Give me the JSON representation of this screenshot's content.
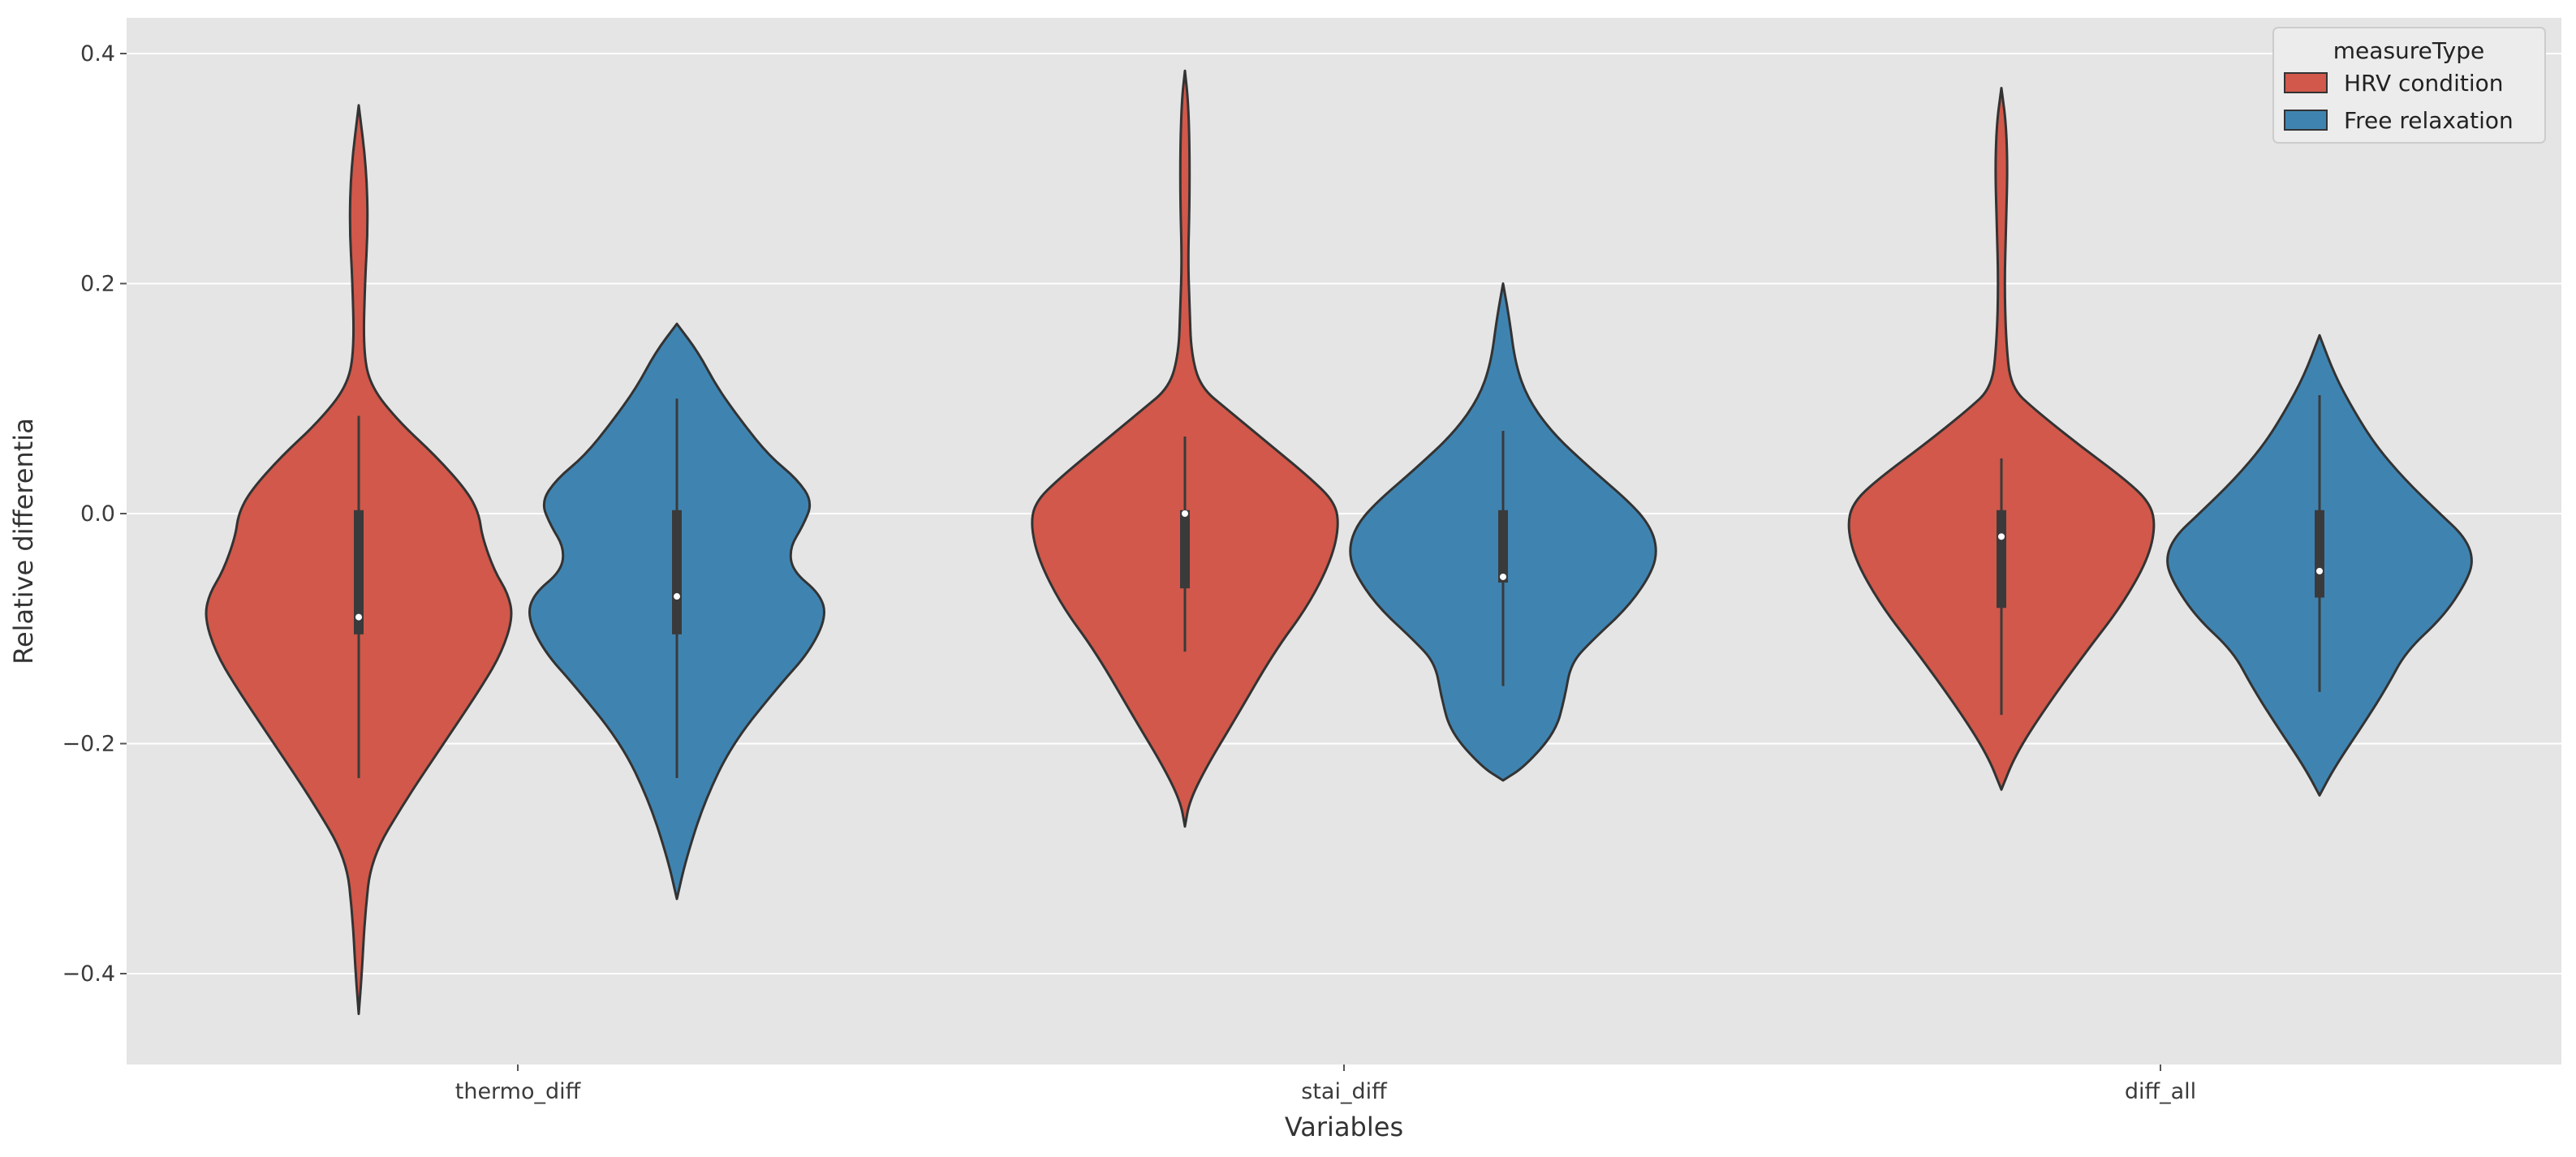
{
  "chart_data": {
    "type": "violin",
    "title": "",
    "xlabel": "Variables",
    "ylabel": "Relative differentia",
    "ylim": [
      -0.48,
      0.43
    ],
    "yticks": [
      -0.4,
      -0.2,
      0.0,
      0.2,
      0.4
    ],
    "ytick_labels": [
      "−0.4",
      "−0.2",
      "0.0",
      "0.2",
      "0.4"
    ],
    "categories": [
      "thermo_diff",
      "stai_diff",
      "diff_all"
    ],
    "grid": true,
    "legend": {
      "title": "measureType",
      "placement": "top-right"
    },
    "series": [
      {
        "name": "HRV condition",
        "color": "#d1584a",
        "groups": [
          {
            "category": "thermo_diff",
            "min": -0.23,
            "q1": -0.105,
            "median": -0.09,
            "q3": 0.003,
            "max": 0.085,
            "density": [
              [
                -0.435,
                0.0
              ],
              [
                -0.4,
                0.02
              ],
              [
                -0.35,
                0.04
              ],
              [
                -0.3,
                0.08
              ],
              [
                -0.25,
                0.3
              ],
              [
                -0.2,
                0.55
              ],
              [
                -0.15,
                0.8
              ],
              [
                -0.12,
                0.93
              ],
              [
                -0.09,
                1.0
              ],
              [
                -0.07,
                0.97
              ],
              [
                -0.05,
                0.88
              ],
              [
                -0.02,
                0.8
              ],
              [
                0.0,
                0.78
              ],
              [
                0.02,
                0.7
              ],
              [
                0.05,
                0.5
              ],
              [
                0.08,
                0.26
              ],
              [
                0.11,
                0.08
              ],
              [
                0.14,
                0.03
              ],
              [
                0.2,
                0.04
              ],
              [
                0.25,
                0.06
              ],
              [
                0.3,
                0.05
              ],
              [
                0.355,
                0.0
              ]
            ]
          },
          {
            "category": "stai_diff",
            "min": -0.12,
            "q1": -0.065,
            "median": 0.0,
            "q3": 0.003,
            "max": 0.067,
            "density": [
              [
                -0.272,
                0.0
              ],
              [
                -0.25,
                0.03
              ],
              [
                -0.22,
                0.14
              ],
              [
                -0.18,
                0.32
              ],
              [
                -0.12,
                0.58
              ],
              [
                -0.08,
                0.8
              ],
              [
                -0.04,
                0.95
              ],
              [
                -0.01,
                1.0
              ],
              [
                0.01,
                0.97
              ],
              [
                0.03,
                0.82
              ],
              [
                0.06,
                0.55
              ],
              [
                0.09,
                0.28
              ],
              [
                0.11,
                0.1
              ],
              [
                0.14,
                0.04
              ],
              [
                0.18,
                0.03
              ],
              [
                0.22,
                0.02
              ],
              [
                0.27,
                0.03
              ],
              [
                0.32,
                0.03
              ],
              [
                0.36,
                0.02
              ],
              [
                0.385,
                0.0
              ]
            ]
          },
          {
            "category": "diff_all",
            "min": -0.175,
            "q1": -0.082,
            "median": -0.02,
            "q3": 0.003,
            "max": 0.048,
            "density": [
              [
                -0.24,
                0.0
              ],
              [
                -0.21,
                0.09
              ],
              [
                -0.17,
                0.28
              ],
              [
                -0.12,
                0.55
              ],
              [
                -0.08,
                0.78
              ],
              [
                -0.04,
                0.95
              ],
              [
                -0.01,
                1.0
              ],
              [
                0.01,
                0.96
              ],
              [
                0.03,
                0.8
              ],
              [
                0.06,
                0.5
              ],
              [
                0.09,
                0.22
              ],
              [
                0.11,
                0.06
              ],
              [
                0.15,
                0.03
              ],
              [
                0.2,
                0.02
              ],
              [
                0.25,
                0.03
              ],
              [
                0.3,
                0.04
              ],
              [
                0.34,
                0.03
              ],
              [
                0.37,
                0.0
              ]
            ]
          }
        ]
      },
      {
        "name": "Free relaxation",
        "color": "#3f84b1",
        "groups": [
          {
            "category": "thermo_diff",
            "min": -0.23,
            "q1": -0.105,
            "median": -0.072,
            "q3": 0.003,
            "max": 0.1,
            "density": [
              [
                -0.335,
                0.0
              ],
              [
                -0.3,
                0.06
              ],
              [
                -0.25,
                0.18
              ],
              [
                -0.2,
                0.36
              ],
              [
                -0.15,
                0.66
              ],
              [
                -0.12,
                0.86
              ],
              [
                -0.09,
                0.97
              ],
              [
                -0.07,
                0.93
              ],
              [
                -0.05,
                0.75
              ],
              [
                -0.03,
                0.73
              ],
              [
                -0.01,
                0.82
              ],
              [
                0.01,
                0.88
              ],
              [
                0.03,
                0.78
              ],
              [
                0.05,
                0.6
              ],
              [
                0.08,
                0.42
              ],
              [
                0.11,
                0.26
              ],
              [
                0.14,
                0.14
              ],
              [
                0.165,
                0.0
              ]
            ]
          },
          {
            "category": "stai_diff",
            "min": -0.15,
            "q1": -0.06,
            "median": -0.055,
            "q3": 0.003,
            "max": 0.072,
            "density": [
              [
                -0.232,
                0.0
              ],
              [
                -0.22,
                0.14
              ],
              [
                -0.19,
                0.34
              ],
              [
                -0.16,
                0.4
              ],
              [
                -0.13,
                0.44
              ],
              [
                -0.11,
                0.58
              ],
              [
                -0.08,
                0.82
              ],
              [
                -0.05,
                0.97
              ],
              [
                -0.03,
                1.0
              ],
              [
                -0.01,
                0.95
              ],
              [
                0.01,
                0.82
              ],
              [
                0.04,
                0.56
              ],
              [
                0.07,
                0.32
              ],
              [
                0.1,
                0.16
              ],
              [
                0.13,
                0.08
              ],
              [
                0.17,
                0.04
              ],
              [
                0.2,
                0.0
              ]
            ]
          },
          {
            "category": "diff_all",
            "min": -0.155,
            "q1": -0.073,
            "median": -0.05,
            "q3": 0.003,
            "max": 0.103,
            "density": [
              [
                -0.245,
                0.0
              ],
              [
                -0.22,
                0.1
              ],
              [
                -0.18,
                0.3
              ],
              [
                -0.15,
                0.44
              ],
              [
                -0.12,
                0.56
              ],
              [
                -0.09,
                0.8
              ],
              [
                -0.06,
                0.95
              ],
              [
                -0.04,
                1.0
              ],
              [
                -0.02,
                0.94
              ],
              [
                0.0,
                0.78
              ],
              [
                0.03,
                0.55
              ],
              [
                0.06,
                0.36
              ],
              [
                0.09,
                0.22
              ],
              [
                0.12,
                0.1
              ],
              [
                0.155,
                0.0
              ]
            ]
          }
        ]
      }
    ]
  }
}
